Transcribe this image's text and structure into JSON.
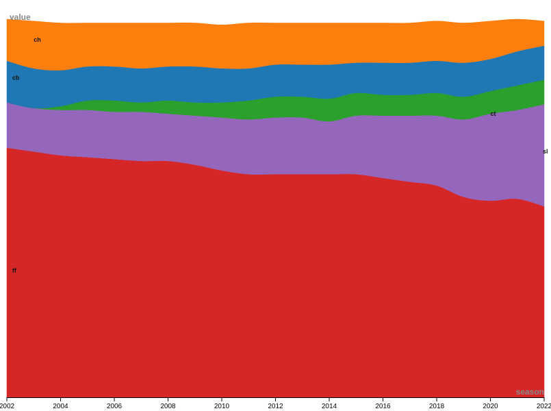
{
  "chart_data": {
    "type": "area",
    "stacked": true,
    "xlabel": "season",
    "ylabel": "value",
    "xlim": [
      2002,
      2022
    ],
    "ylim": [
      0,
      1
    ],
    "grid": false,
    "legend": "inline labels on areas",
    "x_ticks": [
      2002,
      2004,
      2006,
      2008,
      2010,
      2012,
      2014,
      2016,
      2018,
      2020,
      2022
    ],
    "x": [
      2002,
      2003,
      2004,
      2005,
      2006,
      2007,
      2008,
      2009,
      2010,
      2011,
      2012,
      2013,
      2014,
      2015,
      2016,
      2017,
      2018,
      2019,
      2020,
      2021,
      2022
    ],
    "series": [
      {
        "name": "ff",
        "label": "ff",
        "color": "#d62728",
        "values": [
          0.66,
          0.65,
          0.64,
          0.635,
          0.63,
          0.625,
          0.625,
          0.615,
          0.6,
          0.59,
          0.59,
          0.59,
          0.59,
          0.59,
          0.58,
          0.57,
          0.56,
          0.53,
          0.52,
          0.525,
          0.505
        ]
      },
      {
        "name": "sl",
        "label": "sl",
        "color": "#9467bd",
        "values": [
          0.12,
          0.115,
          0.12,
          0.125,
          0.125,
          0.13,
          0.125,
          0.13,
          0.14,
          0.145,
          0.15,
          0.15,
          0.14,
          0.155,
          0.165,
          0.175,
          0.185,
          0.205,
          0.23,
          0.235,
          0.27
        ]
      },
      {
        "name": "ct",
        "label": "ct",
        "color": "#2ca02c",
        "values": [
          0.0,
          0.0,
          0.01,
          0.025,
          0.03,
          0.025,
          0.035,
          0.035,
          0.04,
          0.05,
          0.055,
          0.055,
          0.06,
          0.06,
          0.055,
          0.055,
          0.06,
          0.06,
          0.06,
          0.065,
          0.065
        ]
      },
      {
        "name": "cb",
        "label": "cb",
        "color": "#1f77b4",
        "values": [
          0.11,
          0.105,
          0.095,
          0.09,
          0.09,
          0.09,
          0.09,
          0.095,
          0.09,
          0.085,
          0.085,
          0.085,
          0.09,
          0.08,
          0.085,
          0.085,
          0.085,
          0.09,
          0.085,
          0.09,
          0.09
        ]
      },
      {
        "name": "ch",
        "label": "ch",
        "color": "#ff7f0e",
        "values": [
          0.11,
          0.125,
          0.125,
          0.115,
          0.115,
          0.12,
          0.115,
          0.115,
          0.115,
          0.12,
          0.11,
          0.11,
          0.11,
          0.105,
          0.105,
          0.105,
          0.105,
          0.105,
          0.1,
          0.085,
          0.065
        ]
      }
    ],
    "inline_labels": [
      {
        "series": "ch",
        "x": 2003.0,
        "y": 0.94
      },
      {
        "series": "cb",
        "x": 2002.2,
        "y": 0.84
      },
      {
        "series": "ct",
        "x": 2020.0,
        "y": 0.745
      },
      {
        "series": "sl",
        "x": 2021.95,
        "y": 0.645
      },
      {
        "series": "ff",
        "x": 2002.2,
        "y": 0.33
      }
    ]
  }
}
